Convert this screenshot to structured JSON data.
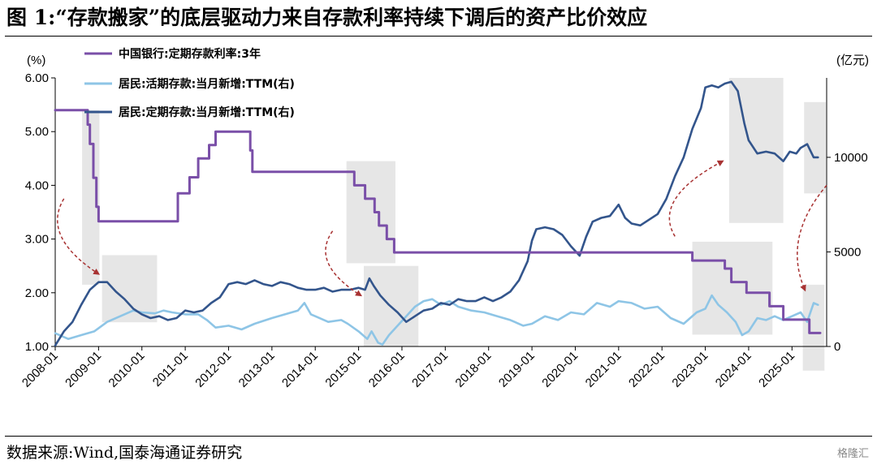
{
  "title": "图 1:“存款搬家”的底层驱动力来自存款利率持续下调后的资产比价效应",
  "source": "数据来源:Wind,国泰海通证券研究",
  "logo": "格隆汇",
  "chart_data": {
    "type": "line",
    "y_left": {
      "unit": "(%)",
      "min": 1.0,
      "max": 6.0,
      "ticks": [
        "1.00",
        "2.00",
        "3.00",
        "4.00",
        "5.00",
        "6.00"
      ]
    },
    "y_right": {
      "unit": "(亿元)",
      "min": 0,
      "max": 14200,
      "ticks": [
        "0",
        "5000",
        "10000"
      ]
    },
    "x_start": 2008.0,
    "x_end": 2025.8,
    "x_ticks": [
      "2008-01",
      "2009-01",
      "2010-01",
      "2011-01",
      "2012-01",
      "2013-01",
      "2014-01",
      "2015-01",
      "2016-01",
      "2017-01",
      "2018-01",
      "2019-01",
      "2020-01",
      "2021-01",
      "2022-01",
      "2023-01",
      "2024-01",
      "2025-01"
    ],
    "grid": false,
    "legend_position": "top-left",
    "series": [
      {
        "name": "中国银行:定期存款利率:3年",
        "axis": "left",
        "color": "#7a4fa8",
        "style": "step",
        "points": [
          [
            2008.0,
            5.4
          ],
          [
            2008.7,
            5.4
          ],
          [
            2008.75,
            5.13
          ],
          [
            2008.8,
            4.77
          ],
          [
            2008.88,
            4.14
          ],
          [
            2008.95,
            3.6
          ],
          [
            2009.0,
            3.33
          ],
          [
            2010.8,
            3.33
          ],
          [
            2010.83,
            3.85
          ],
          [
            2011.1,
            4.15
          ],
          [
            2011.3,
            4.5
          ],
          [
            2011.55,
            4.75
          ],
          [
            2011.7,
            5.0
          ],
          [
            2012.43,
            5.0
          ],
          [
            2012.5,
            4.65
          ],
          [
            2012.55,
            4.25
          ],
          [
            2014.87,
            4.25
          ],
          [
            2014.9,
            4.0
          ],
          [
            2015.15,
            3.75
          ],
          [
            2015.37,
            3.5
          ],
          [
            2015.47,
            3.25
          ],
          [
            2015.65,
            3.0
          ],
          [
            2015.82,
            2.75
          ],
          [
            2022.65,
            2.75
          ],
          [
            2022.7,
            2.6
          ],
          [
            2023.4,
            2.6
          ],
          [
            2023.45,
            2.45
          ],
          [
            2023.6,
            2.2
          ],
          [
            2023.95,
            2.0
          ],
          [
            2024.48,
            1.75
          ],
          [
            2024.8,
            1.5
          ],
          [
            2025.35,
            1.5
          ],
          [
            2025.4,
            1.25
          ],
          [
            2025.65,
            1.25
          ]
        ]
      },
      {
        "name": "居民:活期存款:当月新增:TTM(右)",
        "axis": "right",
        "color": "#8ec5e6",
        "style": "line",
        "points": [
          [
            2008.0,
            700
          ],
          [
            2008.3,
            400
          ],
          [
            2008.6,
            600
          ],
          [
            2008.9,
            800
          ],
          [
            2009.2,
            1300
          ],
          [
            2009.5,
            1600
          ],
          [
            2009.8,
            1900
          ],
          [
            2010.0,
            1800
          ],
          [
            2010.3,
            1750
          ],
          [
            2010.5,
            1900
          ],
          [
            2010.7,
            1800
          ],
          [
            2011.0,
            1700
          ],
          [
            2011.3,
            1700
          ],
          [
            2011.5,
            1400
          ],
          [
            2011.7,
            1000
          ],
          [
            2012.0,
            1100
          ],
          [
            2012.3,
            900
          ],
          [
            2012.6,
            1200
          ],
          [
            2013.0,
            1500
          ],
          [
            2013.3,
            1700
          ],
          [
            2013.6,
            1900
          ],
          [
            2013.75,
            2300
          ],
          [
            2013.9,
            1700
          ],
          [
            2014.0,
            1600
          ],
          [
            2014.3,
            1300
          ],
          [
            2014.6,
            1400
          ],
          [
            2014.75,
            1200
          ],
          [
            2015.0,
            800
          ],
          [
            2015.2,
            400
          ],
          [
            2015.3,
            800
          ],
          [
            2015.45,
            200
          ],
          [
            2015.55,
            100
          ],
          [
            2015.7,
            600
          ],
          [
            2015.9,
            1100
          ],
          [
            2016.1,
            1600
          ],
          [
            2016.3,
            2100
          ],
          [
            2016.5,
            2400
          ],
          [
            2016.7,
            2500
          ],
          [
            2016.9,
            2200
          ],
          [
            2017.1,
            2400
          ],
          [
            2017.3,
            2100
          ],
          [
            2017.6,
            1900
          ],
          [
            2017.9,
            1800
          ],
          [
            2018.2,
            1600
          ],
          [
            2018.5,
            1400
          ],
          [
            2018.8,
            1100
          ],
          [
            2019.0,
            1200
          ],
          [
            2019.3,
            1600
          ],
          [
            2019.6,
            1400
          ],
          [
            2019.9,
            1800
          ],
          [
            2020.2,
            1700
          ],
          [
            2020.5,
            2300
          ],
          [
            2020.8,
            2100
          ],
          [
            2021.0,
            2400
          ],
          [
            2021.3,
            2300
          ],
          [
            2021.6,
            2000
          ],
          [
            2021.9,
            2100
          ],
          [
            2022.2,
            1500
          ],
          [
            2022.5,
            1200
          ],
          [
            2022.8,
            1800
          ],
          [
            2023.0,
            2000
          ],
          [
            2023.15,
            2700
          ],
          [
            2023.3,
            2200
          ],
          [
            2023.5,
            1800
          ],
          [
            2023.7,
            1300
          ],
          [
            2023.85,
            600
          ],
          [
            2024.0,
            800
          ],
          [
            2024.2,
            1500
          ],
          [
            2024.4,
            1400
          ],
          [
            2024.6,
            1600
          ],
          [
            2024.8,
            1400
          ],
          [
            2025.0,
            1600
          ],
          [
            2025.2,
            1800
          ],
          [
            2025.35,
            1300
          ],
          [
            2025.5,
            2300
          ],
          [
            2025.6,
            2200
          ]
        ]
      },
      {
        "name": "居民:定期存款:当月新增:TTM(右)",
        "axis": "right",
        "color": "#33558c",
        "style": "line",
        "points": [
          [
            2008.0,
            50
          ],
          [
            2008.2,
            800
          ],
          [
            2008.4,
            1300
          ],
          [
            2008.6,
            2200
          ],
          [
            2008.8,
            3000
          ],
          [
            2009.0,
            3400
          ],
          [
            2009.2,
            3400
          ],
          [
            2009.4,
            2900
          ],
          [
            2009.6,
            2500
          ],
          [
            2009.8,
            2000
          ],
          [
            2010.0,
            1700
          ],
          [
            2010.2,
            1500
          ],
          [
            2010.4,
            1600
          ],
          [
            2010.6,
            1400
          ],
          [
            2010.8,
            1500
          ],
          [
            2011.0,
            1900
          ],
          [
            2011.2,
            1800
          ],
          [
            2011.4,
            1900
          ],
          [
            2011.6,
            2300
          ],
          [
            2011.8,
            2600
          ],
          [
            2012.0,
            3300
          ],
          [
            2012.2,
            3400
          ],
          [
            2012.4,
            3300
          ],
          [
            2012.6,
            3500
          ],
          [
            2012.8,
            3300
          ],
          [
            2013.0,
            3200
          ],
          [
            2013.2,
            3400
          ],
          [
            2013.4,
            3300
          ],
          [
            2013.6,
            3100
          ],
          [
            2013.8,
            3000
          ],
          [
            2014.0,
            3000
          ],
          [
            2014.2,
            3100
          ],
          [
            2014.4,
            2900
          ],
          [
            2014.6,
            3000
          ],
          [
            2014.8,
            3000
          ],
          [
            2015.0,
            3100
          ],
          [
            2015.15,
            3000
          ],
          [
            2015.25,
            3600
          ],
          [
            2015.35,
            3200
          ],
          [
            2015.5,
            2700
          ],
          [
            2015.7,
            2200
          ],
          [
            2015.9,
            1800
          ],
          [
            2016.1,
            1300
          ],
          [
            2016.3,
            1600
          ],
          [
            2016.5,
            1900
          ],
          [
            2016.7,
            2000
          ],
          [
            2016.9,
            2300
          ],
          [
            2017.1,
            2200
          ],
          [
            2017.3,
            2500
          ],
          [
            2017.5,
            2400
          ],
          [
            2017.7,
            2400
          ],
          [
            2017.9,
            2600
          ],
          [
            2018.1,
            2400
          ],
          [
            2018.3,
            2600
          ],
          [
            2018.5,
            2900
          ],
          [
            2018.7,
            3500
          ],
          [
            2018.9,
            4500
          ],
          [
            2019.0,
            5600
          ],
          [
            2019.1,
            6200
          ],
          [
            2019.3,
            6300
          ],
          [
            2019.5,
            6200
          ],
          [
            2019.7,
            5900
          ],
          [
            2019.9,
            5300
          ],
          [
            2020.1,
            4800
          ],
          [
            2020.25,
            5800
          ],
          [
            2020.4,
            6600
          ],
          [
            2020.6,
            6800
          ],
          [
            2020.8,
            6900
          ],
          [
            2021.0,
            7500
          ],
          [
            2021.15,
            6800
          ],
          [
            2021.3,
            6500
          ],
          [
            2021.5,
            6400
          ],
          [
            2021.7,
            6700
          ],
          [
            2021.9,
            7000
          ],
          [
            2022.1,
            7800
          ],
          [
            2022.3,
            9000
          ],
          [
            2022.5,
            10000
          ],
          [
            2022.7,
            11500
          ],
          [
            2022.9,
            12600
          ],
          [
            2023.0,
            13700
          ],
          [
            2023.15,
            13800
          ],
          [
            2023.3,
            13700
          ],
          [
            2023.45,
            13900
          ],
          [
            2023.6,
            14000
          ],
          [
            2023.75,
            13500
          ],
          [
            2023.9,
            11800
          ],
          [
            2024.0,
            10900
          ],
          [
            2024.2,
            10200
          ],
          [
            2024.4,
            10300
          ],
          [
            2024.6,
            10200
          ],
          [
            2024.8,
            9800
          ],
          [
            2024.95,
            10300
          ],
          [
            2025.1,
            10200
          ],
          [
            2025.2,
            10500
          ],
          [
            2025.35,
            10700
          ],
          [
            2025.5,
            10000
          ],
          [
            2025.6,
            10000
          ]
        ]
      }
    ],
    "shaded_regions": [
      {
        "x0": 2008.62,
        "x1": 2009.02,
        "axis": "left",
        "y0": 2.15,
        "y1": 5.4
      },
      {
        "x0": 2009.08,
        "x1": 2010.35,
        "axis": "left",
        "y0": 1.45,
        "y1": 2.7
      },
      {
        "x0": 2014.72,
        "x1": 2015.85,
        "axis": "left",
        "y0": 2.55,
        "y1": 4.45
      },
      {
        "x0": 2015.12,
        "x1": 2016.38,
        "axis": "left",
        "y0": 1.0,
        "y1": 2.5
      },
      {
        "x0": 2023.55,
        "x1": 2024.8,
        "axis": "left",
        "y0": 3.3,
        "y1": 6.0
      },
      {
        "x0": 2022.7,
        "x1": 2024.55,
        "axis": "left",
        "y0": 1.22,
        "y1": 2.95
      },
      {
        "x0": 2025.28,
        "x1": 2025.78,
        "axis": "left",
        "y0": 3.85,
        "y1": 5.55
      },
      {
        "x0": 2025.25,
        "x1": 2025.75,
        "axis": "left",
        "y0": 0.55,
        "y1": 2.15
      }
    ],
    "arrows": [
      {
        "x0": 2008.2,
        "y0": 3.75,
        "x1": 2009.0,
        "y1": 2.35,
        "dir": "down"
      },
      {
        "x0": 2014.4,
        "y0": 3.15,
        "x1": 2015.05,
        "y1": 1.95,
        "dir": "down"
      },
      {
        "x0": 2022.3,
        "y0": 3.05,
        "x1": 2023.4,
        "y1": 4.45,
        "dir": "up"
      },
      {
        "x0": 2025.8,
        "y0": 4.0,
        "x1": 2025.3,
        "y1": 2.05,
        "dir": "down"
      }
    ]
  }
}
